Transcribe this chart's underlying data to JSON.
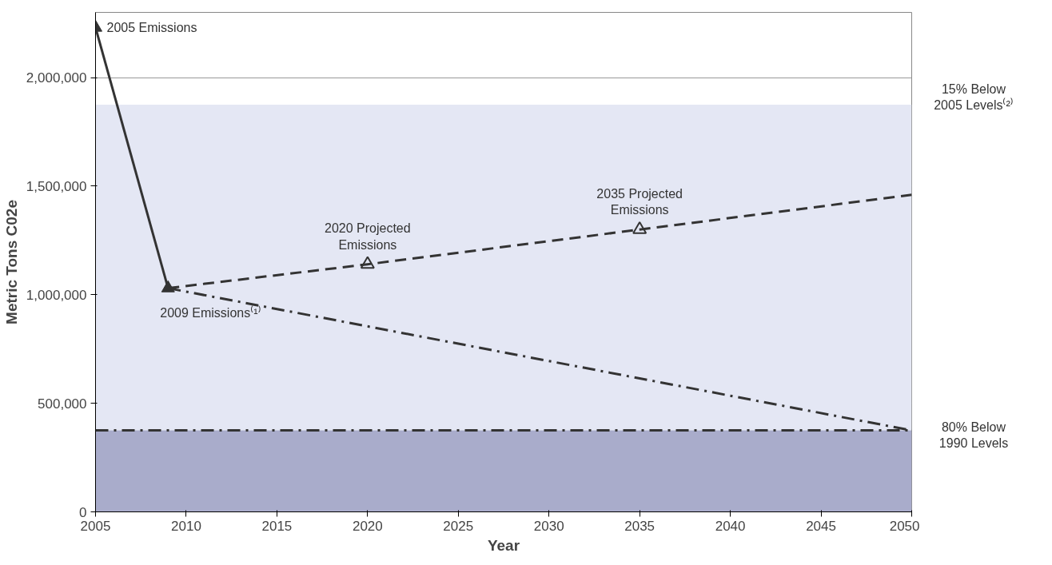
{
  "chart_data": {
    "type": "line",
    "xlabel": "Year",
    "ylabel": "Metric Tons C02e",
    "xlim": [
      2005,
      2050
    ],
    "xticks": [
      2005,
      2010,
      2015,
      2020,
      2025,
      2030,
      2035,
      2040,
      2045,
      2050
    ],
    "ylim": [
      0,
      2300000
    ],
    "yticks": [
      0,
      {
        "value": 500000,
        "label": "500,000"
      },
      {
        "value": 1000000,
        "label": "1,000,000"
      },
      {
        "value": 1500000,
        "label": "1,500,000"
      },
      {
        "value": 2000000,
        "label": "2,000,000"
      }
    ],
    "grid": "y",
    "series": [
      {
        "color": "#333333",
        "x": [
          2005,
          2009
        ],
        "values": [
          2230000,
          1030000
        ],
        "marker": "triangle",
        "line_style": "solid"
      },
      {
        "color": "#333333",
        "x": [
          2009,
          2020,
          2035,
          2050
        ],
        "values": [
          1030000,
          1140000,
          1300000,
          1460000
        ],
        "line_style": "dashed"
      },
      {
        "type": "scatter",
        "color": "#333333",
        "x": [
          2020,
          2035
        ],
        "values": [
          1140000,
          1300000
        ],
        "marker": "triangle"
      },
      {
        "color": "#333333",
        "x": [
          2009,
          2050
        ],
        "values": [
          1030000,
          375000
        ],
        "line_style": "dashdot"
      }
    ],
    "bands": [
      {
        "axis": "y",
        "from": 375000,
        "to": 1875000,
        "label": "15% Below\n2005 Levels⁽²⁾",
        "color": "#e4e7f4"
      },
      {
        "axis": "y",
        "from": 0,
        "to": 375000,
        "color": "#a9accb"
      }
    ],
    "ref_lines": [
      {
        "axis": "y",
        "value": 375000,
        "label": "80% Below\n1990 Levels",
        "line_style": "dashdot",
        "color": "#333333"
      }
    ],
    "annotations": [
      {
        "text": "2005 Emissions",
        "x": 2005,
        "y": 2230000
      },
      {
        "text": "2009 Emissions⁽¹⁾",
        "x": 2009,
        "y": 1030000
      },
      {
        "text": "2020 Projected\nEmissions",
        "x": 2020,
        "y": 1140000
      },
      {
        "text": "2035 Projected\nEmissions",
        "x": 2035,
        "y": 1300000
      }
    ]
  }
}
